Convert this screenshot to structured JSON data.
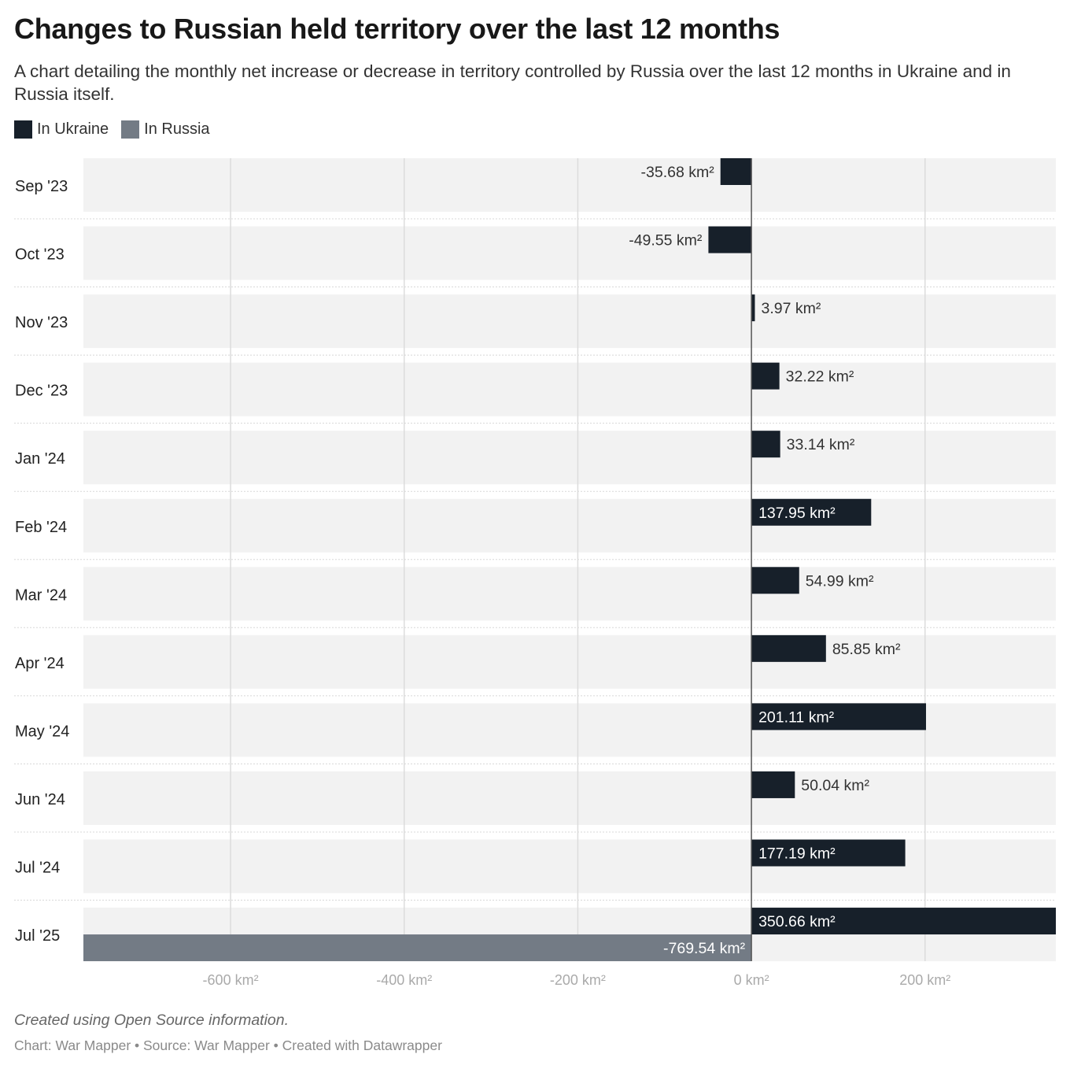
{
  "title": "Changes to Russian held territory over the last 12 months",
  "subtitle": "A chart detailing the monthly net increase or decrease in territory controlled by Russia over the last 12 months in Ukraine and in Russia itself.",
  "notes": "Created using Open Source information.",
  "byline": "Chart: War Mapper • Source: War Mapper • Created with Datawrapper",
  "chart_data": {
    "type": "bar",
    "orientation": "horizontal",
    "unit": "km²",
    "categories": [
      "Sep '23",
      "Oct '23",
      "Nov '23",
      "Dec '23",
      "Jan '24",
      "Feb '24",
      "Mar '24",
      "Apr '24",
      "May '24",
      "Jun '24",
      "Jul '24",
      "Jul '25"
    ],
    "series": [
      {
        "name": "In Ukraine",
        "color": "#17202a",
        "values": [
          -35.68,
          -49.55,
          3.97,
          32.22,
          33.14,
          137.95,
          54.99,
          85.85,
          201.11,
          50.04,
          177.19,
          350.66
        ]
      },
      {
        "name": "In Russia",
        "color": "#737b85",
        "values": [
          null,
          null,
          null,
          null,
          null,
          null,
          null,
          null,
          null,
          null,
          null,
          -769.54
        ]
      }
    ],
    "data_labels": {
      "In Ukraine": [
        "-35.68 km²",
        "-49.55 km²",
        "3.97 km²",
        "32.22 km²",
        "33.14 km²",
        "137.95 km²",
        "54.99 km²",
        "85.85 km²",
        "201.11 km²",
        "50.04 km²",
        "177.19 km²",
        "350.66 km²"
      ],
      "In Russia": [
        null,
        null,
        null,
        null,
        null,
        null,
        null,
        null,
        null,
        null,
        null,
        "-769.54 km²"
      ]
    },
    "xlim": [
      -769.54,
      350.66
    ],
    "xticks": [
      -600,
      -400,
      -200,
      0,
      200
    ],
    "xtick_labels": [
      "-600 km²",
      "-400 km²",
      "-200 km²",
      "0 km²",
      "200 km²"
    ],
    "grid": true,
    "legend_position": "top-left",
    "row_background": "#f2f2f2"
  }
}
